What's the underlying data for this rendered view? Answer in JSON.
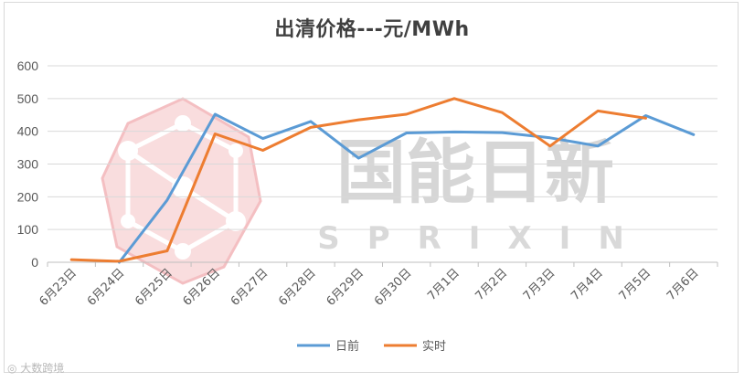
{
  "chart_data": {
    "type": "line",
    "title": "出清价格---元/MWh",
    "categories": [
      "6月23日",
      "6月24日",
      "6月25日",
      "6月26日",
      "6月27日",
      "6月28日",
      "6月29日",
      "6月30日",
      "7月1日",
      "7月2日",
      "7月3日",
      "7月4日",
      "7月5日",
      "7月6日"
    ],
    "ylim": [
      0,
      600
    ],
    "yticks": [
      "0",
      "100",
      "200",
      "300",
      "400",
      "500",
      "600"
    ],
    "grid": true,
    "legend_position": "bottom",
    "series": [
      {
        "name": "日前",
        "color": "#5B9BD5",
        "values": [
          null,
          0,
          190,
          452,
          378,
          430,
          318,
          395,
          398,
          396,
          380,
          355,
          448,
          390
        ]
      },
      {
        "name": "实时",
        "color": "#ED7D31",
        "values": [
          8,
          3,
          35,
          392,
          342,
          412,
          435,
          452,
          500,
          457,
          355,
          462,
          440,
          null
        ]
      }
    ]
  },
  "watermark": {
    "brand": "国能日新",
    "sub": "SPRIXIN",
    "logo_color": "#E8737A"
  },
  "credit": "◎ 大数跨境"
}
